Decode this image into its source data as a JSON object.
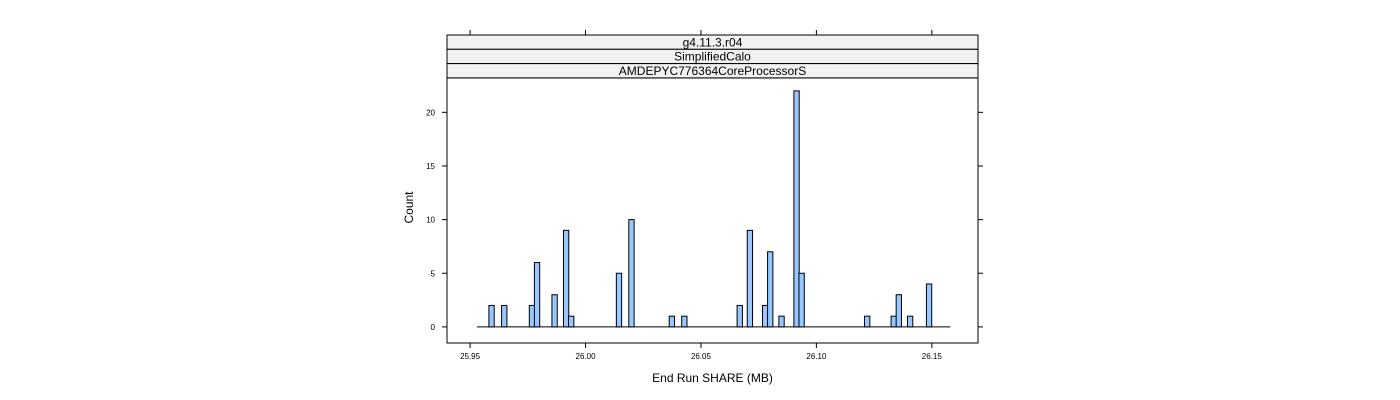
{
  "chart_data": {
    "type": "bar",
    "strips": [
      "g4.11.3.r04",
      "SimplifiedCalo",
      "AMDEPYC776364CoreProcessorS"
    ],
    "xlabel": "End Run SHARE (MB)",
    "ylabel": "Count",
    "xlim": [
      25.94,
      26.17
    ],
    "ylim": [
      -1.5,
      23.2
    ],
    "x_ticks": [
      25.95,
      26.0,
      26.05,
      26.1,
      26.15
    ],
    "x_tick_labels": [
      "25.95",
      "26.00",
      "26.05",
      "26.10",
      "26.15"
    ],
    "y_ticks": [
      0,
      5,
      10,
      15,
      20
    ],
    "y_tick_labels": [
      "0",
      "5",
      "10",
      "15",
      "20"
    ],
    "baseline_range": [
      25.953,
      26.158
    ],
    "bin_width": 0.0023,
    "bins": [
      {
        "x": 25.9593,
        "count": 2
      },
      {
        "x": 25.9648,
        "count": 2
      },
      {
        "x": 25.9768,
        "count": 2
      },
      {
        "x": 25.979,
        "count": 6
      },
      {
        "x": 25.9866,
        "count": 3
      },
      {
        "x": 25.9916,
        "count": 9
      },
      {
        "x": 25.9938,
        "count": 1
      },
      {
        "x": 26.0145,
        "count": 5
      },
      {
        "x": 26.0199,
        "count": 10
      },
      {
        "x": 26.0374,
        "count": 1
      },
      {
        "x": 26.0428,
        "count": 1
      },
      {
        "x": 26.0668,
        "count": 2
      },
      {
        "x": 26.0712,
        "count": 9
      },
      {
        "x": 26.0778,
        "count": 2
      },
      {
        "x": 26.08,
        "count": 7
      },
      {
        "x": 26.0849,
        "count": 1
      },
      {
        "x": 26.0914,
        "count": 22
      },
      {
        "x": 26.0936,
        "count": 5
      },
      {
        "x": 26.122,
        "count": 1
      },
      {
        "x": 26.1335,
        "count": 1
      },
      {
        "x": 26.1357,
        "count": 3
      },
      {
        "x": 26.1406,
        "count": 1
      },
      {
        "x": 26.1488,
        "count": 4
      }
    ],
    "bar_fill": "#99c7ff",
    "bar_stroke": "#000000",
    "strip_fill": "#f2f2f2"
  }
}
